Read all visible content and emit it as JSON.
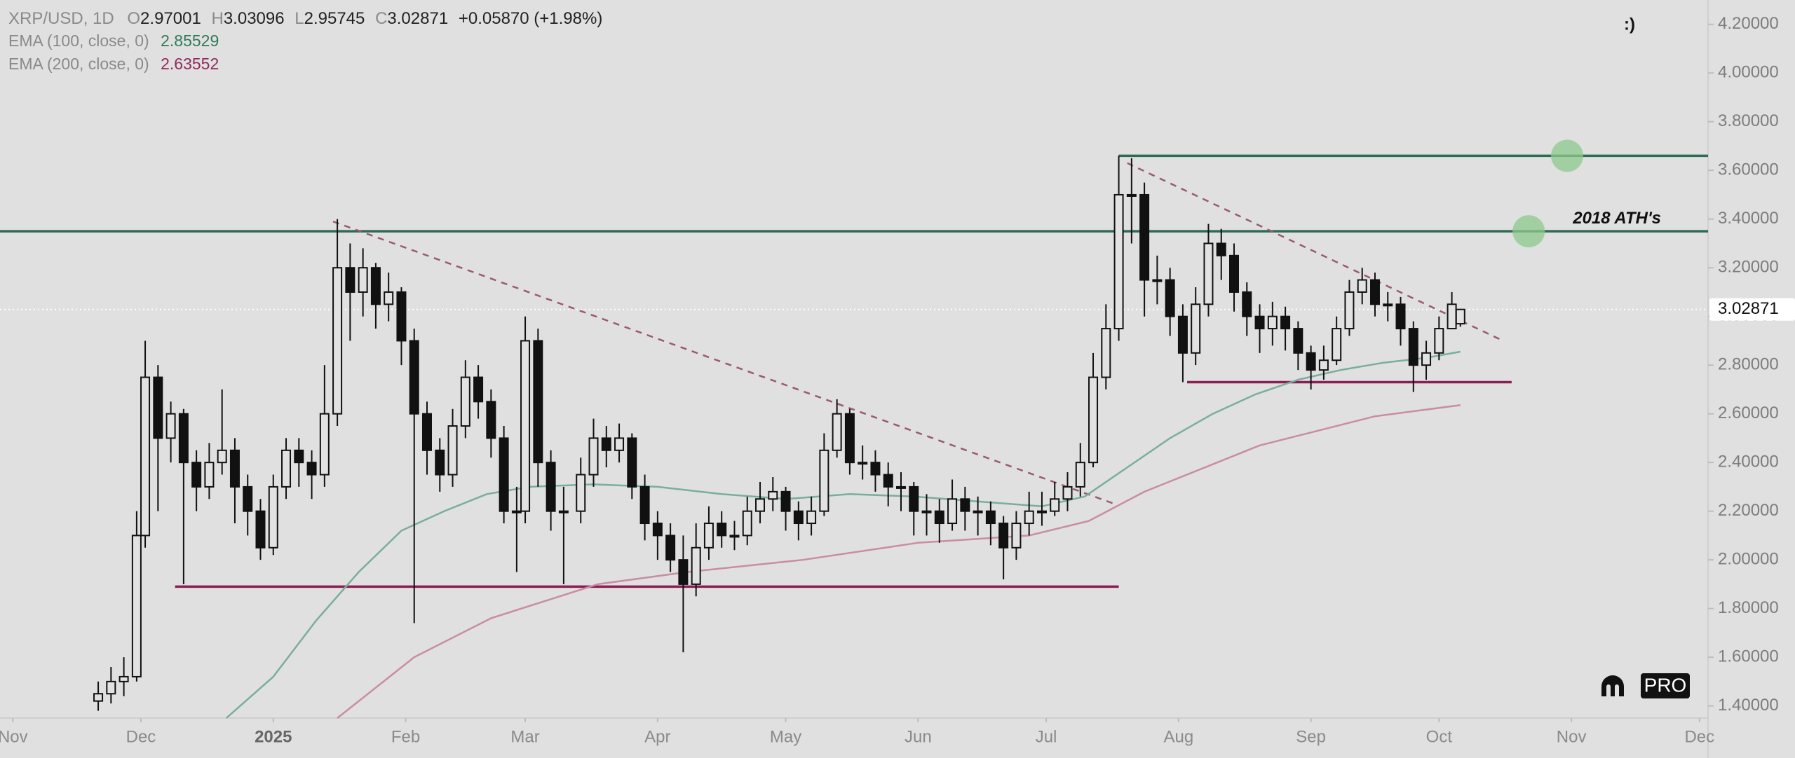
{
  "chart_data": {
    "type": "candlestick",
    "title": "XRP/USD, 1D",
    "ohlc_labels": [
      "O",
      "H",
      "L",
      "C"
    ],
    "change": "+0.05870 (+1.98%)",
    "corner_note": ":)",
    "brand": "PRO",
    "candles": {
      "x": [
        -41,
        -38,
        -35,
        -32,
        -30,
        -27,
        -24,
        -21,
        -18,
        -15,
        -12,
        -9,
        -6,
        -3,
        0,
        3,
        6,
        9,
        12,
        15,
        18,
        21,
        24,
        27,
        30,
        33,
        36,
        39,
        42,
        45,
        48,
        51,
        54,
        57,
        59,
        62,
        65,
        68,
        72,
        75,
        78,
        81,
        84,
        87,
        90,
        93,
        96,
        99,
        102,
        105,
        108,
        111,
        114,
        117,
        120,
        123,
        126,
        129,
        132,
        135,
        138,
        141,
        144,
        147,
        150,
        153,
        156,
        159,
        162,
        165,
        168,
        171,
        174,
        177,
        180,
        183,
        186,
        189,
        192,
        195,
        198,
        201,
        204,
        207,
        210,
        213,
        216,
        219,
        222,
        225,
        228,
        231,
        234,
        237,
        240,
        243,
        246,
        249,
        252,
        255,
        258,
        261,
        264,
        267,
        270,
        273,
        276,
        278
      ],
      "open": [
        1.42,
        1.45,
        1.5,
        1.52,
        2.1,
        2.75,
        2.5,
        2.6,
        2.4,
        2.3,
        2.4,
        2.45,
        2.3,
        2.2,
        2.05,
        2.3,
        2.45,
        2.4,
        2.35,
        2.6,
        3.2,
        3.1,
        3.2,
        3.05,
        3.1,
        2.9,
        2.6,
        2.45,
        2.35,
        2.55,
        2.75,
        2.65,
        2.5,
        2.2,
        2.2,
        2.9,
        2.4,
        2.2,
        2.2,
        2.35,
        2.5,
        2.45,
        2.5,
        2.3,
        2.15,
        2.1,
        2.0,
        1.9,
        2.05,
        2.15,
        2.1,
        2.1,
        2.2,
        2.25,
        2.28,
        2.2,
        2.15,
        2.2,
        2.45,
        2.6,
        2.4,
        2.4,
        2.35,
        2.3,
        2.3,
        2.2,
        2.2,
        2.15,
        2.25,
        2.2,
        2.2,
        2.15,
        2.05,
        2.15,
        2.2,
        2.2,
        2.25,
        2.3,
        2.4,
        2.75,
        2.95,
        3.5,
        3.5,
        3.15,
        3.15,
        3.0,
        2.85,
        3.05,
        3.3,
        3.25,
        3.1,
        3.0,
        2.95,
        3.0,
        2.95,
        2.85,
        2.78,
        2.82,
        2.95,
        3.1,
        3.15,
        3.05,
        3.05,
        2.95,
        2.8,
        2.85,
        2.95,
        2.97001
      ],
      "high": [
        1.5,
        1.56,
        1.6,
        2.2,
        2.9,
        2.8,
        2.65,
        2.62,
        2.45,
        2.48,
        2.7,
        2.5,
        2.35,
        2.25,
        2.35,
        2.5,
        2.5,
        2.45,
        2.8,
        3.4,
        3.3,
        3.28,
        3.22,
        3.18,
        3.12,
        2.95,
        2.65,
        2.5,
        2.62,
        2.82,
        2.8,
        2.7,
        2.55,
        2.3,
        3.0,
        2.95,
        2.45,
        2.3,
        2.42,
        2.58,
        2.55,
        2.56,
        2.52,
        2.35,
        2.2,
        2.15,
        2.1,
        2.15,
        2.22,
        2.2,
        2.16,
        2.26,
        2.32,
        2.34,
        2.3,
        2.24,
        2.26,
        2.52,
        2.66,
        2.62,
        2.47,
        2.45,
        2.4,
        2.36,
        2.32,
        2.27,
        2.25,
        2.33,
        2.3,
        2.26,
        2.24,
        2.18,
        2.2,
        2.28,
        2.28,
        2.32,
        2.36,
        2.48,
        2.85,
        3.05,
        3.66,
        3.65,
        3.55,
        3.25,
        3.2,
        3.05,
        3.12,
        3.38,
        3.36,
        3.3,
        3.14,
        3.05,
        3.06,
        3.04,
        2.98,
        2.88,
        2.88,
        3.0,
        3.15,
        3.2,
        3.18,
        3.1,
        3.08,
        2.98,
        2.9,
        3.0,
        3.1,
        3.03096
      ],
      "low": [
        1.38,
        1.41,
        1.44,
        1.5,
        2.05,
        2.2,
        2.4,
        1.9,
        2.2,
        2.25,
        2.35,
        2.15,
        2.1,
        2.0,
        2.02,
        2.25,
        2.3,
        2.25,
        2.3,
        2.55,
        2.9,
        3.0,
        2.95,
        2.98,
        2.8,
        1.74,
        2.35,
        2.28,
        2.3,
        2.5,
        2.58,
        2.42,
        2.15,
        1.95,
        2.15,
        2.3,
        2.12,
        1.9,
        2.15,
        2.3,
        2.38,
        2.4,
        2.25,
        2.08,
        2.0,
        1.95,
        1.62,
        1.85,
        2.0,
        2.05,
        2.04,
        2.06,
        2.15,
        2.2,
        2.12,
        2.08,
        2.1,
        2.18,
        2.42,
        2.35,
        2.33,
        2.28,
        2.22,
        2.2,
        2.1,
        2.1,
        2.07,
        2.12,
        2.12,
        2.1,
        2.06,
        1.92,
        2.0,
        2.1,
        2.14,
        2.18,
        2.2,
        2.26,
        2.38,
        2.7,
        2.9,
        3.3,
        3.0,
        3.05,
        2.92,
        2.73,
        2.8,
        3.0,
        3.15,
        3.02,
        2.92,
        2.85,
        2.88,
        2.86,
        2.78,
        2.7,
        2.74,
        2.8,
        2.92,
        3.05,
        3.0,
        2.98,
        2.88,
        2.69,
        2.74,
        2.82,
        2.95,
        2.95745
      ],
      "close": [
        1.45,
        1.5,
        1.52,
        2.1,
        2.75,
        2.5,
        2.6,
        2.4,
        2.3,
        2.4,
        2.45,
        2.3,
        2.2,
        2.05,
        2.3,
        2.45,
        2.4,
        2.35,
        2.6,
        3.2,
        3.1,
        3.2,
        3.05,
        3.1,
        2.9,
        2.6,
        2.45,
        2.35,
        2.55,
        2.75,
        2.65,
        2.5,
        2.2,
        2.2,
        2.9,
        2.4,
        2.2,
        2.2,
        2.35,
        2.5,
        2.45,
        2.5,
        2.3,
        2.15,
        2.1,
        2.0,
        1.9,
        2.05,
        2.15,
        2.1,
        2.1,
        2.2,
        2.25,
        2.28,
        2.2,
        2.15,
        2.2,
        2.45,
        2.6,
        2.4,
        2.4,
        2.35,
        2.3,
        2.3,
        2.2,
        2.2,
        2.15,
        2.25,
        2.2,
        2.2,
        2.15,
        2.05,
        2.15,
        2.2,
        2.2,
        2.25,
        2.3,
        2.4,
        2.75,
        2.95,
        3.5,
        3.5,
        3.15,
        3.15,
        3.0,
        2.85,
        3.05,
        3.3,
        3.25,
        3.1,
        3.0,
        2.95,
        3.0,
        2.95,
        2.85,
        2.78,
        2.82,
        2.95,
        3.1,
        3.15,
        3.05,
        3.05,
        2.95,
        2.8,
        2.85,
        2.95,
        3.05,
        3.02871
      ]
    },
    "up_color": "#e2e2e2",
    "down_color": "#111111",
    "wick_color": "#111111",
    "series": [
      {
        "name": "EMA (100, close, 0)",
        "color": "#7aae9c",
        "value_color": "#2f7a5a",
        "x": [
          -11,
          0,
          10,
          20,
          30,
          40,
          50,
          60,
          75,
          90,
          105,
          120,
          135,
          150,
          165,
          180,
          190,
          200,
          210,
          220,
          230,
          240,
          250,
          260,
          270,
          278
        ],
        "values": [
          1.35,
          1.52,
          1.75,
          1.95,
          2.12,
          2.2,
          2.27,
          2.3,
          2.31,
          2.3,
          2.27,
          2.25,
          2.27,
          2.26,
          2.24,
          2.22,
          2.26,
          2.38,
          2.5,
          2.6,
          2.68,
          2.74,
          2.78,
          2.81,
          2.83,
          2.85529
        ]
      },
      {
        "name": "EMA (200, close, 0)",
        "color": "#c98ca4",
        "value_color": "#93285e",
        "x": [
          15,
          33,
          51,
          76,
          97,
          124,
          151,
          177,
          191,
          204,
          231,
          258,
          278
        ],
        "values": [
          1.35,
          1.6,
          1.76,
          1.9,
          1.95,
          2.0,
          2.07,
          2.1,
          2.16,
          2.28,
          2.47,
          2.59,
          2.63552
        ]
      }
    ],
    "drawings": [
      {
        "x": [
          -64,
          336
        ],
        "y": [
          3.35,
          3.35
        ],
        "color": "#2f6a53",
        "dashed": false
      },
      {
        "x": [
          198,
          336
        ],
        "y": [
          3.66,
          3.66
        ],
        "color": "#2f6a53",
        "dashed": false
      },
      {
        "x": [
          -23,
          198
        ],
        "y": [
          1.89,
          1.89
        ],
        "color": "#8a1f52",
        "dashed": false
      },
      {
        "x": [
          214,
          290
        ],
        "y": [
          2.73,
          2.73
        ],
        "color": "#8a1f52",
        "dashed": false
      },
      {
        "x": [
          14,
          197
        ],
        "y": [
          3.39,
          2.23
        ],
        "color": "#9a5a6e",
        "dashed": true
      },
      {
        "x": [
          200,
          288
        ],
        "y": [
          3.63,
          2.9
        ],
        "color": "#9a5a6e",
        "dashed": true
      }
    ],
    "targets": {
      "x": [
        303,
        294
      ],
      "y": [
        3.66,
        3.35
      ],
      "color": "#8ec98e"
    },
    "annotations": [
      {
        "text": "2018 ATH's",
        "x": 325,
        "y": 3.4
      }
    ],
    "xlim": [
      -64,
      336
    ],
    "xticks": [
      {
        "value": -61,
        "label": "Nov"
      },
      {
        "value": -31,
        "label": "Dec"
      },
      {
        "value": 0,
        "label": "2025"
      },
      {
        "value": 31,
        "label": "Feb"
      },
      {
        "value": 59,
        "label": "Mar"
      },
      {
        "value": 90,
        "label": "Apr"
      },
      {
        "value": 120,
        "label": "May"
      },
      {
        "value": 151,
        "label": "Jun"
      },
      {
        "value": 181,
        "label": "Jul"
      },
      {
        "value": 212,
        "label": "Aug"
      },
      {
        "value": 243,
        "label": "Sep"
      },
      {
        "value": 273,
        "label": "Oct"
      },
      {
        "value": 304,
        "label": "Nov"
      },
      {
        "value": 334,
        "label": "Dec"
      }
    ],
    "ylim": [
      1.35,
      4.3
    ],
    "yticks": [
      {
        "value": 1.4,
        "label": "1.40000"
      },
      {
        "value": 1.6,
        "label": "1.60000"
      },
      {
        "value": 1.8,
        "label": "1.80000"
      },
      {
        "value": 2.0,
        "label": "2.00000"
      },
      {
        "value": 2.2,
        "label": "2.20000"
      },
      {
        "value": 2.4,
        "label": "2.40000"
      },
      {
        "value": 2.6,
        "label": "2.60000"
      },
      {
        "value": 2.8,
        "label": "2.80000"
      },
      {
        "value": 3.0,
        "label": "3.00000"
      },
      {
        "value": 3.2,
        "label": "3.20000"
      },
      {
        "value": 3.4,
        "label": "3.40000"
      },
      {
        "value": 3.6,
        "label": "3.60000"
      },
      {
        "value": 3.8,
        "label": "3.80000"
      },
      {
        "value": 4.0,
        "label": "4.00000"
      },
      {
        "value": 4.2,
        "label": "4.20000"
      }
    ]
  }
}
